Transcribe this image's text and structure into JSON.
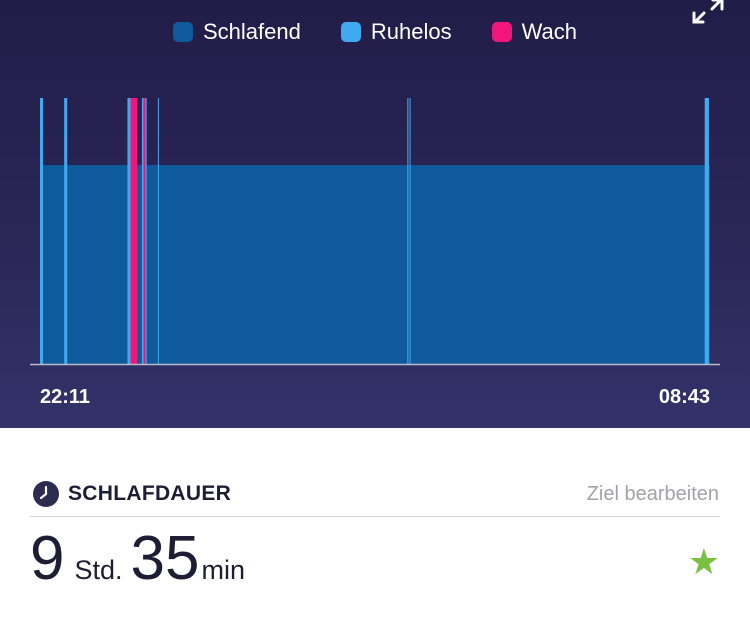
{
  "colors": {
    "asleep": "#0e5a9a",
    "restless": "#41a9f0",
    "awake": "#f2157a",
    "axis": "#b9b9cc",
    "star": "#7bc043"
  },
  "legend": [
    {
      "label": "Schlafend",
      "color": "#0e5a9a"
    },
    {
      "label": "Ruhelos",
      "color": "#41a9f0"
    },
    {
      "label": "Wach",
      "color": "#f2157a"
    }
  ],
  "icons": {
    "expand": "expand-icon",
    "clock": "clock-icon",
    "star": "star-icon"
  },
  "chart_data": {
    "type": "timeline",
    "x_start": "22:11",
    "x_end": "08:43",
    "x_range_minutes": [
      0,
      632
    ],
    "levels": [
      "Schlafend",
      "Ruhelos",
      "Wach"
    ],
    "base_state": "Schlafend",
    "events": [
      {
        "state": "Ruhelos",
        "start_min": 0.0,
        "end_min": 2.9
      },
      {
        "state": "Ruhelos",
        "start_min": 22.8,
        "end_min": 25.7
      },
      {
        "state": "Ruhelos",
        "start_min": 82.5,
        "end_min": 85.4
      },
      {
        "state": "Wach",
        "start_min": 85.4,
        "end_min": 91.8
      },
      {
        "state": "Ruhelos",
        "start_min": 96.1,
        "end_min": 97.8
      },
      {
        "state": "Wach",
        "start_min": 97.8,
        "end_min": 99.5
      },
      {
        "state": "Ruhelos",
        "start_min": 99.5,
        "end_min": 100.6
      },
      {
        "state": "Ruhelos",
        "start_min": 111.2,
        "end_min": 112.0
      },
      {
        "state": "Ruhelos",
        "start_min": 346.5,
        "end_min": 347.5
      },
      {
        "state": "Ruhelos",
        "start_min": 348.6,
        "end_min": 349.5
      },
      {
        "state": "Ruhelos",
        "start_min": 627.0,
        "end_min": 631.0
      }
    ],
    "x_tick_labels": [
      "22:11",
      "08:43"
    ]
  },
  "summary": {
    "title": "SCHLAFDAUER",
    "edit_goal": "Ziel bearbeiten",
    "hours": "9",
    "hours_unit": "Std.",
    "minutes": "35",
    "minutes_unit": "min"
  }
}
